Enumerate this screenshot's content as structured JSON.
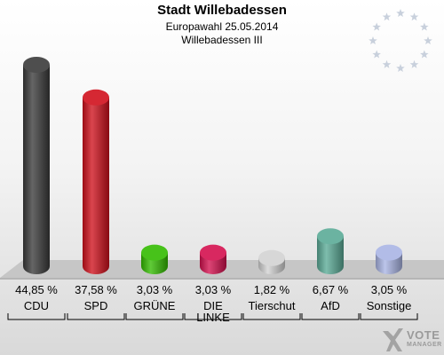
{
  "header": {
    "title": "Stadt Willebadessen",
    "subtitle": "Europawahl 25.05.2014",
    "district": "Willebadessen III"
  },
  "logo": {
    "line1": "VOTE",
    "line2": "MANAGER",
    "icon": "checkmark-x-icon"
  },
  "eu_stars": {
    "icon": "eu-stars-icon",
    "count": 12,
    "color": "#c8d0dc"
  },
  "chart_data": {
    "type": "bar",
    "style": "3d-cylinder",
    "categories": [
      "CDU",
      "SPD",
      "GRÜNE",
      "DIE LINKE",
      "Tierschut",
      "AfD",
      "Sonstige"
    ],
    "category_display": [
      [
        "CDU"
      ],
      [
        "SPD"
      ],
      [
        "GRÜNE"
      ],
      [
        "DIE",
        "LINKE"
      ],
      [
        "Tierschut"
      ],
      [
        "AfD"
      ],
      [
        "Sonstige"
      ]
    ],
    "values": [
      44.85,
      37.58,
      3.03,
      3.03,
      1.82,
      6.67,
      3.05
    ],
    "value_labels": [
      "44,85 %",
      "37,58 %",
      "3,03 %",
      "3,03 %",
      "1,82 %",
      "6,67 %",
      "3,05 %"
    ],
    "colors": [
      "#3a3a3a",
      "#d0101c",
      "#33bb00",
      "#d4104e",
      "#d2d2d2",
      "#5aab96",
      "#a9b4e4"
    ],
    "unit": "%",
    "ylim": [
      0,
      45
    ],
    "grid": false,
    "legend": "none"
  }
}
